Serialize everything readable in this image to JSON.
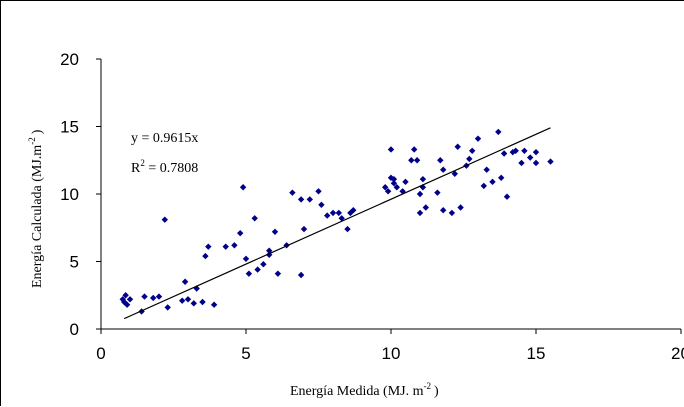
{
  "chart_data": {
    "type": "scatter",
    "xlabel": {
      "main": "Energía Medida (MJ. m",
      "sup": "-2",
      "tail": ")"
    },
    "ylabel": {
      "main": "Energía Calculada (MJ.m",
      "sup": "-2",
      "tail": ")"
    },
    "xlim": [
      0,
      20
    ],
    "ylim": [
      0,
      20
    ],
    "xticks": [
      "0",
      "5",
      "10",
      "15",
      "20"
    ],
    "yticks": [
      "0",
      "5",
      "10",
      "15",
      "20"
    ],
    "grid": false,
    "marker_color": "#00008B",
    "annotations": {
      "equation": "y = 0.9615x",
      "r2_prefix": "R",
      "r2_sup": "2",
      "r2_value": " = 0.7808"
    },
    "trendline": {
      "slope": 0.9615,
      "x_range": [
        0.8,
        15.5
      ]
    },
    "points": [
      [
        0.75,
        2.2
      ],
      [
        0.85,
        2.5
      ],
      [
        0.8,
        2.0
      ],
      [
        0.9,
        1.8
      ],
      [
        1.0,
        2.2
      ],
      [
        1.4,
        1.3
      ],
      [
        1.5,
        2.4
      ],
      [
        1.8,
        2.3
      ],
      [
        2.0,
        2.4
      ],
      [
        2.2,
        8.1
      ],
      [
        2.3,
        1.6
      ],
      [
        2.8,
        2.1
      ],
      [
        2.9,
        3.5
      ],
      [
        3.0,
        2.2
      ],
      [
        3.2,
        1.9
      ],
      [
        3.3,
        3.0
      ],
      [
        3.5,
        2.0
      ],
      [
        3.6,
        5.4
      ],
      [
        3.7,
        6.1
      ],
      [
        3.9,
        1.8
      ],
      [
        4.3,
        6.1
      ],
      [
        4.6,
        6.2
      ],
      [
        4.8,
        7.1
      ],
      [
        4.9,
        10.5
      ],
      [
        5.0,
        5.2
      ],
      [
        5.1,
        4.1
      ],
      [
        5.3,
        8.2
      ],
      [
        5.4,
        4.4
      ],
      [
        5.6,
        4.8
      ],
      [
        5.8,
        5.5
      ],
      [
        5.8,
        5.8
      ],
      [
        6.0,
        7.2
      ],
      [
        6.1,
        4.1
      ],
      [
        6.4,
        6.2
      ],
      [
        6.6,
        10.1
      ],
      [
        6.9,
        9.6
      ],
      [
        6.9,
        4.0
      ],
      [
        7.0,
        7.4
      ],
      [
        7.2,
        9.6
      ],
      [
        7.5,
        10.2
      ],
      [
        7.6,
        9.2
      ],
      [
        7.8,
        8.4
      ],
      [
        8.0,
        8.6
      ],
      [
        8.2,
        8.6
      ],
      [
        8.3,
        8.2
      ],
      [
        8.5,
        7.4
      ],
      [
        8.6,
        8.6
      ],
      [
        8.7,
        8.8
      ],
      [
        9.8,
        10.5
      ],
      [
        9.9,
        10.2
      ],
      [
        10.0,
        11.2
      ],
      [
        10.1,
        11.1
      ],
      [
        10.0,
        13.3
      ],
      [
        10.1,
        10.8
      ],
      [
        10.2,
        10.5
      ],
      [
        10.4,
        10.2
      ],
      [
        10.5,
        10.9
      ],
      [
        10.7,
        12.5
      ],
      [
        10.8,
        13.3
      ],
      [
        10.9,
        12.5
      ],
      [
        11.0,
        10.0
      ],
      [
        11.0,
        8.6
      ],
      [
        11.1,
        10.5
      ],
      [
        11.1,
        11.1
      ],
      [
        11.2,
        9.0
      ],
      [
        11.6,
        10.1
      ],
      [
        11.7,
        12.5
      ],
      [
        11.8,
        11.8
      ],
      [
        11.8,
        8.8
      ],
      [
        12.1,
        8.6
      ],
      [
        12.2,
        11.5
      ],
      [
        12.3,
        13.5
      ],
      [
        12.4,
        9.0
      ],
      [
        12.6,
        12.1
      ],
      [
        12.7,
        12.6
      ],
      [
        12.8,
        13.2
      ],
      [
        13.0,
        14.1
      ],
      [
        13.2,
        10.6
      ],
      [
        13.3,
        11.8
      ],
      [
        13.5,
        10.9
      ],
      [
        13.7,
        14.6
      ],
      [
        13.8,
        11.2
      ],
      [
        13.9,
        13.0
      ],
      [
        14.0,
        9.8
      ],
      [
        14.2,
        13.1
      ],
      [
        14.3,
        13.2
      ],
      [
        14.5,
        12.3
      ],
      [
        14.6,
        13.2
      ],
      [
        14.8,
        12.7
      ],
      [
        15.0,
        13.1
      ],
      [
        15.0,
        12.3
      ],
      [
        15.5,
        12.4
      ]
    ]
  }
}
